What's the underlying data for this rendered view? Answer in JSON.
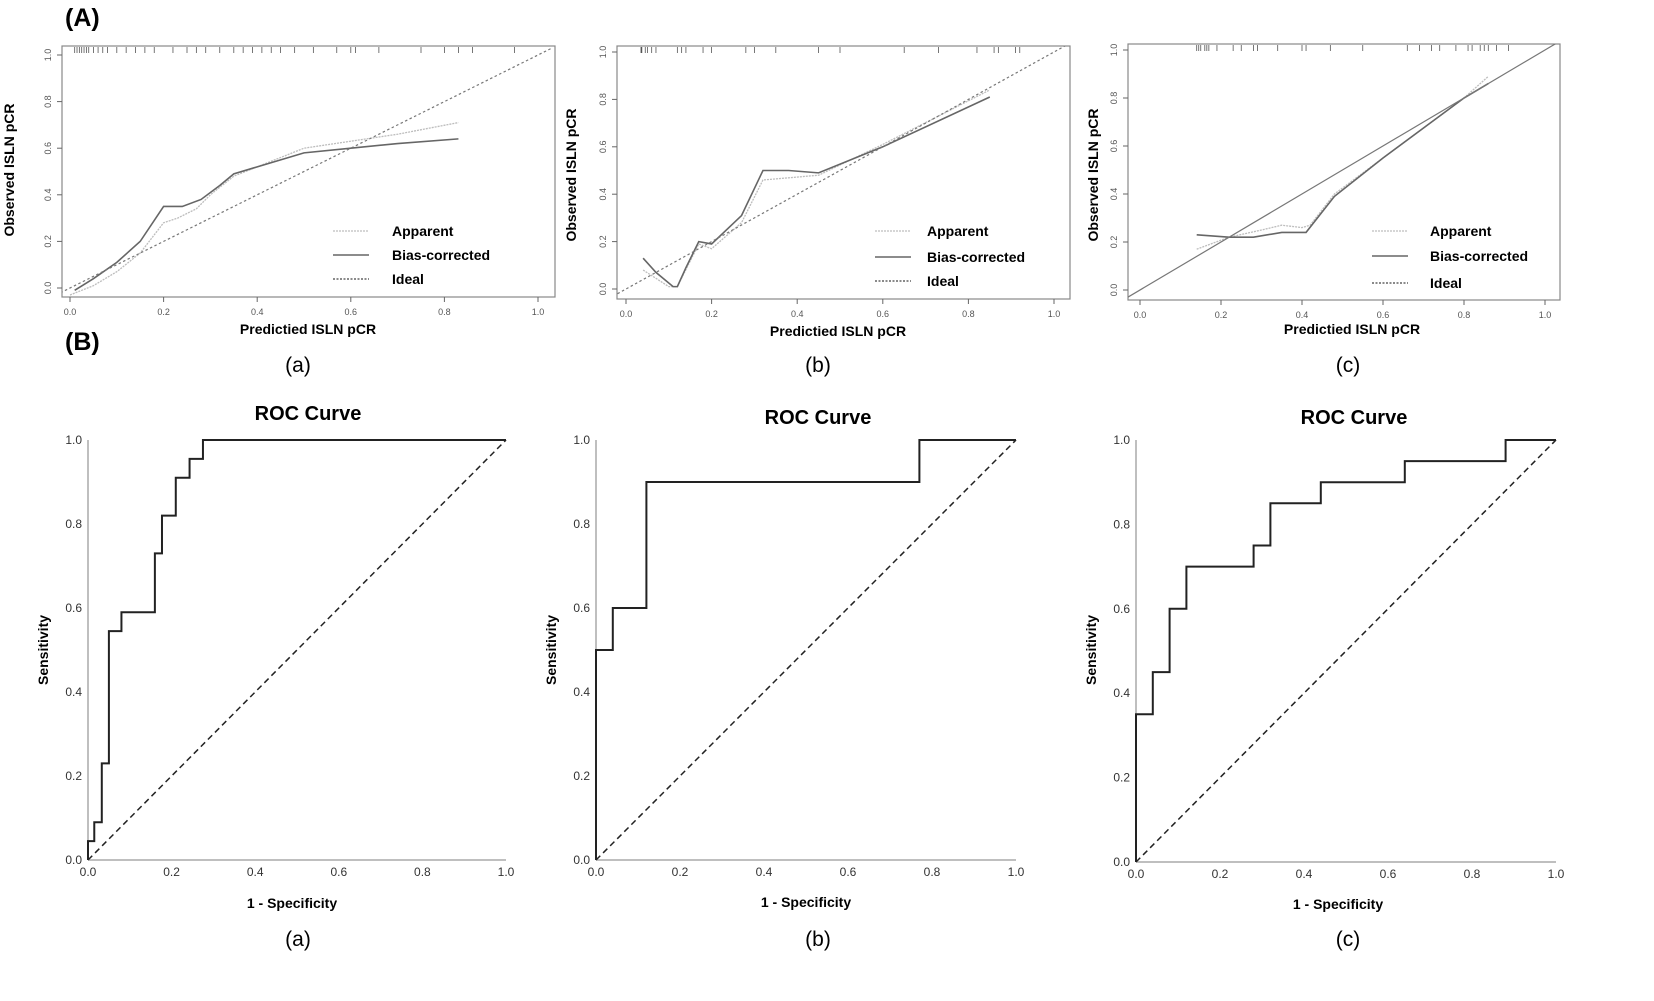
{
  "labels": {
    "section_a": "(A)",
    "section_b": "(B)"
  },
  "colors": {
    "apparent": "#bdbdbd",
    "bias_corrected": "#666666",
    "ideal": "#777777",
    "roc": "#222222",
    "reference": "#222222"
  },
  "chart_data": [
    {
      "type": "line",
      "panel": "(a)",
      "section": "(A)",
      "xlabel": "Predictied ISLN pCR",
      "ylabel": "Observed ISLN pCR",
      "xlim": [
        0,
        1
      ],
      "ylim": [
        0,
        1
      ],
      "xticks": [
        "0.0",
        "0.2",
        "0.4",
        "0.6",
        "0.8",
        "1.0"
      ],
      "yticks": [
        "0.0",
        "0.2",
        "0.4",
        "0.6",
        "0.8",
        "1.0"
      ],
      "legend": [
        "Apparent",
        "Bias-corrected",
        "Ideal"
      ],
      "legend_position": "bottom-right",
      "rug": [
        0.01,
        0.015,
        0.02,
        0.025,
        0.03,
        0.035,
        0.04,
        0.05,
        0.06,
        0.07,
        0.08,
        0.1,
        0.12,
        0.14,
        0.16,
        0.18,
        0.22,
        0.25,
        0.27,
        0.29,
        0.32,
        0.35,
        0.37,
        0.39,
        0.41,
        0.43,
        0.45,
        0.48,
        0.52,
        0.57,
        0.6,
        0.61,
        0.66,
        0.75,
        0.8,
        0.83,
        0.86,
        0.95
      ],
      "series": [
        {
          "name": "Apparent",
          "x": [
            0.0,
            0.05,
            0.1,
            0.15,
            0.2,
            0.23,
            0.27,
            0.3,
            0.35,
            0.4,
            0.5,
            0.6,
            0.7,
            0.83
          ],
          "y": [
            -0.03,
            0.01,
            0.07,
            0.15,
            0.28,
            0.3,
            0.34,
            0.4,
            0.48,
            0.52,
            0.6,
            0.63,
            0.66,
            0.71
          ]
        },
        {
          "name": "Bias-corrected",
          "x": [
            0.01,
            0.05,
            0.1,
            0.15,
            0.18,
            0.2,
            0.24,
            0.28,
            0.32,
            0.35,
            0.4,
            0.5,
            0.6,
            0.7,
            0.83
          ],
          "y": [
            -0.01,
            0.04,
            0.11,
            0.2,
            0.29,
            0.35,
            0.35,
            0.38,
            0.44,
            0.49,
            0.52,
            0.58,
            0.6,
            0.62,
            0.64
          ]
        },
        {
          "name": "Ideal",
          "x": [
            -0.03,
            1.03
          ],
          "y": [
            -0.03,
            1.03
          ]
        }
      ]
    },
    {
      "type": "line",
      "panel": "(b)",
      "section": "(A)",
      "xlabel": "Predictied ISLN pCR",
      "ylabel": "Observed ISLN pCR",
      "xlim": [
        0,
        1
      ],
      "ylim": [
        0,
        1
      ],
      "xticks": [
        "0.0",
        "0.2",
        "0.4",
        "0.6",
        "0.8",
        "1.0"
      ],
      "yticks": [
        "0.0",
        "0.2",
        "0.4",
        "0.6",
        "0.8",
        "1.0"
      ],
      "legend": [
        "Apparent",
        "Bias-corrected",
        "Ideal"
      ],
      "legend_position": "bottom-right",
      "rug": [
        0.035,
        0.036,
        0.037,
        0.045,
        0.05,
        0.06,
        0.07,
        0.12,
        0.13,
        0.14,
        0.18,
        0.2,
        0.28,
        0.3,
        0.35,
        0.45,
        0.5,
        0.65,
        0.73,
        0.82,
        0.86,
        0.87,
        0.91,
        0.92
      ],
      "series": [
        {
          "name": "Apparent",
          "x": [
            0.04,
            0.1,
            0.12,
            0.17,
            0.2,
            0.27,
            0.32,
            0.45,
            0.6,
            0.85
          ],
          "y": [
            0.08,
            0.01,
            0.01,
            0.19,
            0.17,
            0.28,
            0.46,
            0.48,
            0.61,
            0.84
          ]
        },
        {
          "name": "Bias-corrected",
          "x": [
            0.04,
            0.07,
            0.11,
            0.12,
            0.14,
            0.17,
            0.2,
            0.27,
            0.32,
            0.38,
            0.45,
            0.6,
            0.85
          ],
          "y": [
            0.13,
            0.07,
            0.01,
            0.01,
            0.09,
            0.2,
            0.19,
            0.31,
            0.5,
            0.5,
            0.49,
            0.6,
            0.81
          ]
        },
        {
          "name": "Ideal",
          "x": [
            -0.03,
            1.03
          ],
          "y": [
            -0.03,
            1.03
          ]
        }
      ]
    },
    {
      "type": "line",
      "panel": "(c)",
      "section": "(A)",
      "xlabel": "Predictied ISLN pCR",
      "ylabel": "Observed ISLN pCR",
      "xlim": [
        0,
        1
      ],
      "ylim": [
        0,
        1
      ],
      "xticks": [
        "0.0",
        "0.2",
        "0.4",
        "0.6",
        "0.8",
        "1.0"
      ],
      "yticks": [
        "0.0",
        "0.2",
        "0.4",
        "0.6",
        "0.8",
        "1.0"
      ],
      "legend": [
        "Apparent",
        "Bias-corrected",
        "Ideal"
      ],
      "legend_position": "bottom-right",
      "rug": [
        0.14,
        0.145,
        0.15,
        0.16,
        0.165,
        0.17,
        0.19,
        0.23,
        0.25,
        0.28,
        0.29,
        0.34,
        0.4,
        0.41,
        0.47,
        0.55,
        0.66,
        0.69,
        0.72,
        0.74,
        0.78,
        0.81,
        0.82,
        0.84,
        0.85,
        0.86,
        0.88,
        0.91
      ],
      "series": [
        {
          "name": "Apparent",
          "x": [
            0.14,
            0.22,
            0.3,
            0.35,
            0.4,
            0.42,
            0.48,
            0.6,
            0.8,
            0.86
          ],
          "y": [
            0.17,
            0.22,
            0.25,
            0.27,
            0.26,
            0.27,
            0.4,
            0.55,
            0.8,
            0.89
          ]
        },
        {
          "name": "Bias-corrected",
          "x": [
            0.14,
            0.22,
            0.28,
            0.35,
            0.41,
            0.48,
            0.6,
            0.8,
            0.86
          ],
          "y": [
            0.23,
            0.22,
            0.22,
            0.24,
            0.24,
            0.39,
            0.55,
            0.8,
            0.86
          ]
        },
        {
          "name": "Ideal",
          "x": [
            -0.03,
            1.03
          ],
          "y": [
            -0.03,
            1.03
          ]
        }
      ]
    },
    {
      "type": "line",
      "panel": "(a)",
      "section": "(B)",
      "title": "ROC Curve",
      "xlabel": "1 - Specificity",
      "ylabel": "Sensitivity",
      "xlim": [
        0,
        1
      ],
      "ylim": [
        0,
        1
      ],
      "xticks": [
        "0.0",
        "0.2",
        "0.4",
        "0.6",
        "0.8",
        "1.0"
      ],
      "yticks": [
        "0.0",
        "0.2",
        "0.4",
        "0.6",
        "0.8",
        "1.0"
      ],
      "series": [
        {
          "x": [
            0,
            0,
            0.015,
            0.015,
            0.033,
            0.033,
            0.05,
            0.05,
            0.08,
            0.08,
            0.16,
            0.16,
            0.177,
            0.177,
            0.21,
            0.21,
            0.243,
            0.243,
            0.275,
            0.275,
            1
          ],
          "y": [
            0,
            0.045,
            0.045,
            0.09,
            0.09,
            0.23,
            0.23,
            0.545,
            0.545,
            0.59,
            0.59,
            0.73,
            0.73,
            0.82,
            0.82,
            0.91,
            0.91,
            0.955,
            0.955,
            1,
            1
          ]
        },
        {
          "x": [
            0,
            1
          ],
          "y": [
            0,
            1
          ]
        }
      ]
    },
    {
      "type": "line",
      "panel": "(b)",
      "section": "(B)",
      "title": "ROC Curve",
      "xlabel": "1 - Specificity",
      "ylabel": "Sensitivity",
      "xlim": [
        0,
        1
      ],
      "ylim": [
        0,
        1
      ],
      "xticks": [
        "0.0",
        "0.2",
        "0.4",
        "0.6",
        "0.8",
        "1.0"
      ],
      "yticks": [
        "0.0",
        "0.2",
        "0.4",
        "0.6",
        "0.8",
        "1.0"
      ],
      "series": [
        {
          "x": [
            0,
            0,
            0.04,
            0.04,
            0.12,
            0.12,
            0.77,
            0.77,
            1
          ],
          "y": [
            0,
            0.5,
            0.5,
            0.6,
            0.6,
            0.9,
            0.9,
            1,
            1
          ]
        },
        {
          "x": [
            0,
            1
          ],
          "y": [
            0,
            1
          ]
        }
      ]
    },
    {
      "type": "line",
      "panel": "(c)",
      "section": "(B)",
      "title": "ROC Curve",
      "xlabel": "1 - Specificity",
      "ylabel": "Sensitivity",
      "xlim": [
        0,
        1
      ],
      "ylim": [
        0,
        1
      ],
      "xticks": [
        "0.0",
        "0.2",
        "0.4",
        "0.6",
        "0.8",
        "1.0"
      ],
      "yticks": [
        "0.0",
        "0.2",
        "0.4",
        "0.6",
        "0.8",
        "1.0"
      ],
      "series": [
        {
          "x": [
            0,
            0,
            0.04,
            0.04,
            0.08,
            0.08,
            0.12,
            0.12,
            0.28,
            0.28,
            0.32,
            0.32,
            0.44,
            0.44,
            0.64,
            0.64,
            0.88,
            0.88,
            1
          ],
          "y": [
            0,
            0.35,
            0.35,
            0.45,
            0.45,
            0.6,
            0.6,
            0.7,
            0.7,
            0.75,
            0.75,
            0.85,
            0.85,
            0.9,
            0.9,
            0.95,
            0.95,
            1,
            1
          ]
        },
        {
          "x": [
            0,
            1
          ],
          "y": [
            0,
            1
          ]
        }
      ]
    }
  ]
}
